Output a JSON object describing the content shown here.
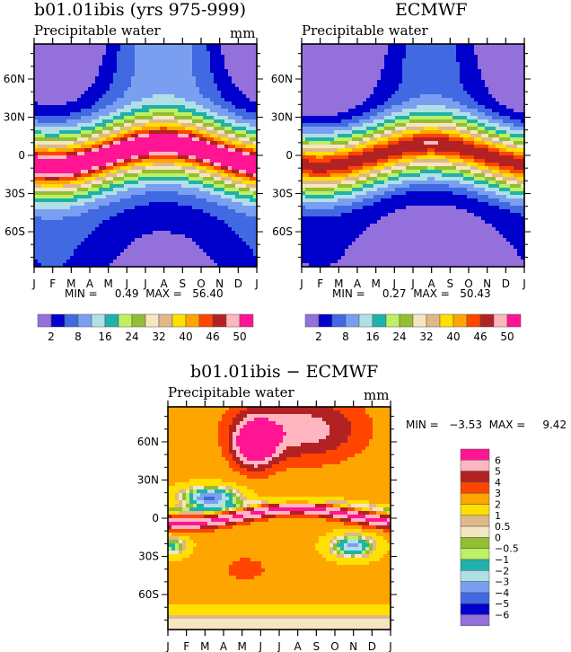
{
  "palette": {
    "full": [
      "#9370db",
      "#0000cd",
      "#4169e1",
      "#7b9ff0",
      "#b0e0e6",
      "#20b2aa",
      "#bdf063",
      "#93bd33",
      "#f5e6c2",
      "#deb887",
      "#ffe000",
      "#ffa500",
      "#ff4500",
      "#b22222",
      "#ffb6c1",
      "#ff1493"
    ],
    "diff": [
      "#ff1493",
      "#ffb6c1",
      "#b22222",
      "#ff4500",
      "#ffa500",
      "#ffe000",
      "#deb887",
      "#f5e6c2",
      "#93bd33",
      "#bdf063",
      "#20b2aa",
      "#b0e0e6",
      "#7b9ff0",
      "#4169e1",
      "#0000cd",
      "#9370db"
    ]
  },
  "chart_data": [
    {
      "type": "heatmap",
      "title": "b01.01ibis (yrs 975-999)",
      "subtitle": "Precipitable water",
      "units": "mm",
      "x_ticks": [
        "J",
        "F",
        "M",
        "A",
        "M",
        "J",
        "J",
        "A",
        "S",
        "O",
        "N",
        "D",
        "J"
      ],
      "y_ticks": [
        "60N",
        "30N",
        "0",
        "30S",
        "60S"
      ],
      "ylim": [
        -90,
        90
      ],
      "min_label": "MIN =",
      "min": "0.49",
      "max_label": "MAX =",
      "max": "56.40",
      "legend_labels": [
        "2",
        "8",
        "16",
        "24",
        "32",
        "40",
        "46",
        "50"
      ],
      "field": "model"
    },
    {
      "type": "heatmap",
      "title": "ECMWF",
      "subtitle": "Precipitable water",
      "units": "",
      "x_ticks": [
        "J",
        "F",
        "M",
        "A",
        "M",
        "J",
        "J",
        "A",
        "S",
        "O",
        "N",
        "D",
        "J"
      ],
      "y_ticks": [
        "60N",
        "30N",
        "0",
        "30S",
        "60S"
      ],
      "ylim": [
        -90,
        90
      ],
      "min_label": "MIN =",
      "min": "0.27",
      "max_label": "MAX =",
      "max": "50.43",
      "legend_labels": [
        "2",
        "8",
        "16",
        "24",
        "32",
        "40",
        "46",
        "50"
      ],
      "field": "obs"
    },
    {
      "type": "heatmap",
      "title": "b01.01ibis − ECMWF",
      "subtitle": "Precipitable water",
      "units": "mm",
      "x_ticks": [
        "J",
        "F",
        "M",
        "A",
        "M",
        "J",
        "J",
        "A",
        "S",
        "O",
        "N",
        "D",
        "J"
      ],
      "y_ticks": [
        "60N",
        "30N",
        "0",
        "30S",
        "60S"
      ],
      "ylim": [
        -90,
        90
      ],
      "min_label": "MIN =",
      "min": "−3.53",
      "max_label": "MAX =",
      "max": "9.42",
      "legend_labels": [
        "6",
        "5",
        "4",
        "3",
        "2",
        "1",
        "0.5",
        "0",
        "−0.5",
        "−1",
        "−2",
        "−3",
        "−4",
        "−5",
        "−6"
      ],
      "field": "diff"
    }
  ]
}
